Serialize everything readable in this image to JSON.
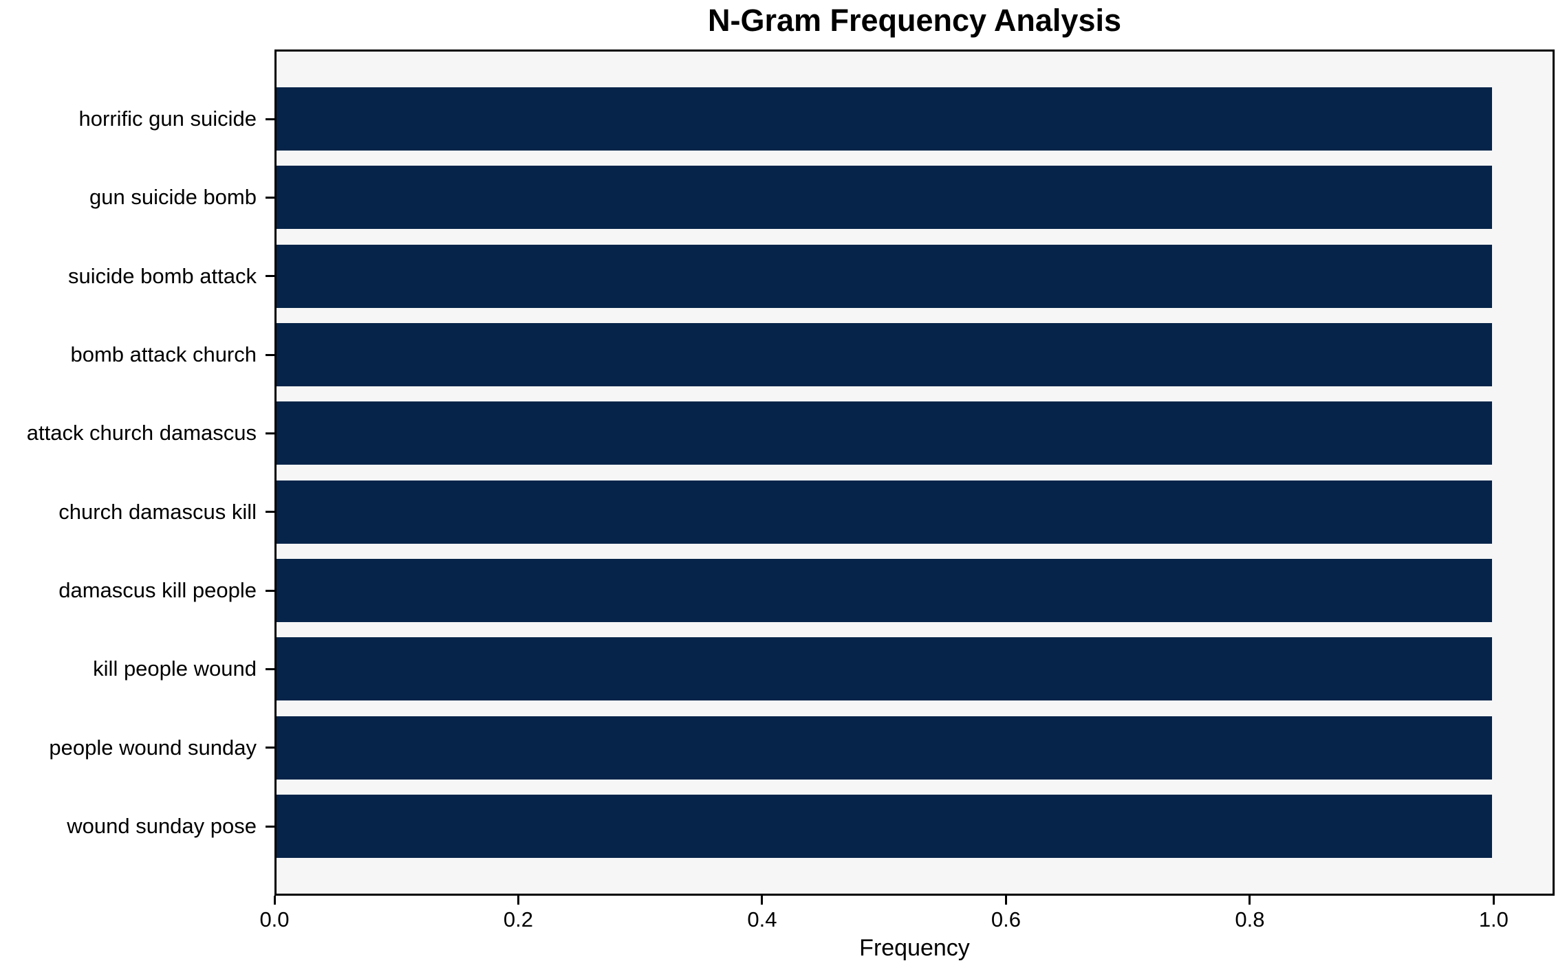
{
  "chart_data": {
    "type": "bar",
    "orientation": "horizontal",
    "title": "N-Gram Frequency Analysis",
    "xlabel": "Frequency",
    "categories": [
      "horrific gun suicide",
      "gun suicide bomb",
      "suicide bomb attack",
      "bomb attack church",
      "attack church damascus",
      "church damascus kill",
      "damascus kill people",
      "kill people wound",
      "people wound sunday",
      "wound sunday pose"
    ],
    "values": [
      1.0,
      1.0,
      1.0,
      1.0,
      1.0,
      1.0,
      1.0,
      1.0,
      1.0,
      1.0
    ],
    "xlim": [
      0,
      1.05
    ],
    "xticks": [
      0.0,
      0.2,
      0.4,
      0.6,
      0.8,
      1.0
    ],
    "xtick_labels": [
      "0.0",
      "0.2",
      "0.4",
      "0.6",
      "0.8",
      "1.0"
    ],
    "grid": false,
    "legend_position": "none",
    "colors": {
      "bar": "#062449",
      "plot_background": "#f6f6f6",
      "figure_background": "#ffffff",
      "spine": "#000000",
      "text": "#000000"
    }
  }
}
